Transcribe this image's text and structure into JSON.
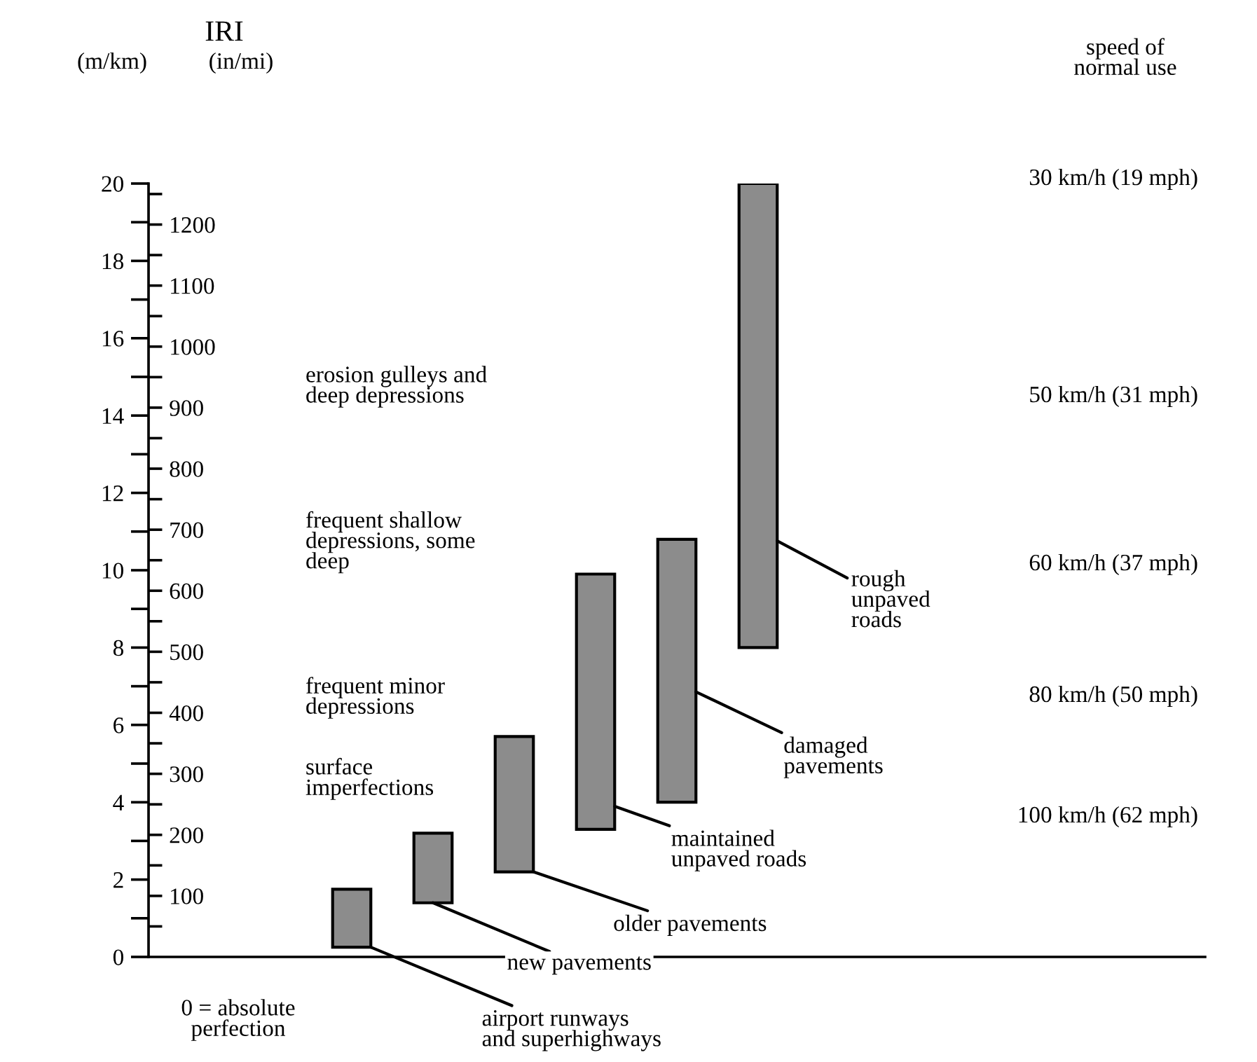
{
  "chart_data": {
    "type": "bar",
    "title": "IRI",
    "ylabel": "(m/km)",
    "y2label": "(in/mi)",
    "categories": [
      null,
      null,
      null,
      null,
      null,
      null,
      null,
      null,
      null,
      null,
      null,
      null,
      null
    ],
    "values": [
      null,
      null,
      1.5,
      1.8,
      3.5,
      6.6,
      6.8,
      12,
      null,
      null,
      null,
      null,
      null
    ],
    "base": [
      null,
      null,
      0.25,
      1.4,
      2.2,
      3.3,
      4.0,
      8.0,
      null,
      null,
      null,
      null,
      null
    ],
    "color": "#8c8c8c",
    "ylim": [
      0,
      20
    ],
    "yticks": [
      0,
      {
        "value": 1,
        "label": null
      },
      2,
      {
        "value": 3,
        "label": null
      },
      4,
      {
        "value": 5,
        "label": null
      },
      6,
      {
        "value": 7,
        "label": null
      },
      8,
      {
        "value": 9,
        "label": null
      },
      10,
      {
        "value": 11,
        "label": null
      },
      12,
      {
        "value": 13,
        "label": null
      },
      14,
      {
        "value": 15,
        "label": null
      },
      16,
      {
        "value": 17,
        "label": null
      },
      18,
      {
        "value": 19,
        "label": null
      },
      20
    ],
    "y2lim": [
      0,
      1267.2
    ],
    "y2ticks": [
      {
        "value": 50,
        "label": null
      },
      100,
      {
        "value": 150,
        "label": null
      },
      200,
      {
        "value": 250,
        "label": null
      },
      300,
      {
        "value": 350,
        "label": null
      },
      400,
      {
        "value": 450,
        "label": null
      },
      500,
      {
        "value": 550,
        "label": null
      },
      600,
      {
        "value": 650,
        "label": null
      },
      700,
      {
        "value": 750,
        "label": null
      },
      800,
      {
        "value": 850,
        "label": null
      },
      900,
      {
        "value": 950,
        "label": null
      },
      1000,
      {
        "value": 1050,
        "label": null
      },
      1100,
      {
        "value": 1150,
        "label": null
      },
      1200,
      {
        "value": 1250,
        "label": null
      }
    ],
    "grid": false,
    "tick_labels": "y",
    "annotations": [
      "airport runways\nand superhighways",
      "new pavements",
      "older pavements",
      "maintained\nunpaved roads",
      "damaged\npavements",
      "rough\nunpaved\nroads",
      "speed of\nnormal use",
      "30 km/h (19 mph)",
      "50 km/h (31 mph)",
      "60 km/h (37 mph)",
      "80 km/h (50 mph)",
      "100 km/h (62 mph)",
      "erosion gulleys and\ndeep depressions",
      "frequent shallow\ndepressions, some\ndeep",
      "frequent minor\ndepressions",
      "surface\nimperfections",
      "0 = absolute\nperfection"
    ]
  }
}
